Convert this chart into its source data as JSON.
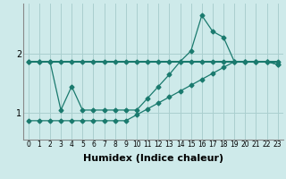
{
  "bg_color": "#ceeaea",
  "line_color": "#1a7a6e",
  "grid_color": "#aacfcf",
  "xlabel": "Humidex (Indice chaleur)",
  "xlabel_fontsize": 8,
  "ylabel_ticks": [
    1,
    2
  ],
  "xlim": [
    -0.5,
    23.5
  ],
  "ylim": [
    0.55,
    2.85
  ],
  "x_ticks": [
    0,
    1,
    2,
    3,
    4,
    5,
    6,
    7,
    8,
    9,
    10,
    11,
    12,
    13,
    14,
    15,
    16,
    17,
    18,
    19,
    20,
    21,
    22,
    23
  ],
  "line1_x": [
    0,
    1,
    2,
    3,
    4,
    5,
    6,
    7,
    8,
    9,
    10,
    11,
    12,
    13,
    14,
    15,
    16,
    17,
    18,
    19,
    20,
    21,
    22,
    23
  ],
  "line1_y": [
    1.87,
    1.87,
    1.87,
    1.87,
    1.87,
    1.87,
    1.87,
    1.87,
    1.87,
    1.87,
    1.87,
    1.87,
    1.87,
    1.87,
    1.87,
    1.87,
    1.87,
    1.87,
    1.87,
    1.87,
    1.87,
    1.87,
    1.87,
    1.87
  ],
  "line2_x": [
    0,
    1,
    2,
    3,
    4,
    5,
    6,
    7,
    8,
    9,
    10,
    11,
    12,
    13,
    14,
    15,
    16,
    17,
    18,
    19,
    20,
    21,
    22,
    23
  ],
  "line2_y": [
    0.87,
    0.87,
    0.87,
    0.87,
    0.87,
    0.87,
    0.87,
    0.87,
    0.87,
    0.87,
    0.97,
    1.07,
    1.17,
    1.27,
    1.37,
    1.47,
    1.57,
    1.67,
    1.77,
    1.87,
    1.87,
    1.87,
    1.87,
    1.82
  ],
  "line3_x": [
    0,
    1,
    2,
    3,
    4,
    5,
    6,
    7,
    8,
    9,
    10,
    11,
    12,
    13,
    14,
    15,
    16,
    17,
    18,
    19,
    20,
    21,
    22,
    23
  ],
  "line3_y": [
    1.87,
    1.87,
    1.87,
    1.05,
    1.45,
    1.05,
    1.05,
    1.05,
    1.05,
    1.05,
    1.05,
    1.25,
    1.45,
    1.65,
    1.87,
    2.05,
    2.65,
    2.38,
    2.28,
    1.87,
    1.87,
    1.87,
    1.87,
    1.82
  ],
  "marker": "D",
  "markersize": 2.5,
  "linewidth1": 1.5,
  "linewidth2": 0.9,
  "linewidth3": 0.9
}
